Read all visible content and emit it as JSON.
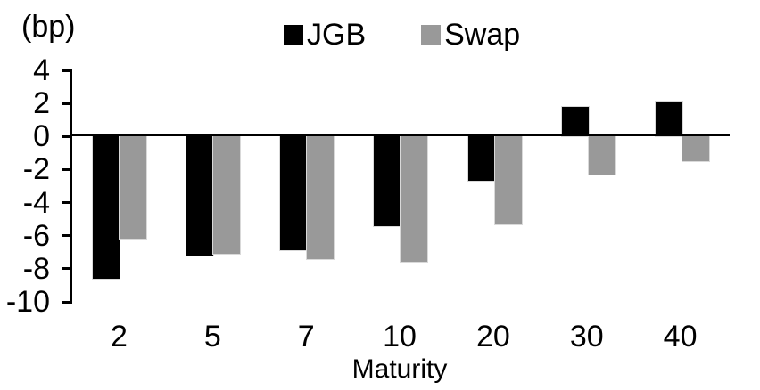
{
  "chart_data": {
    "type": "bar",
    "title": "",
    "unit_label": "(bp)",
    "xlabel": "Maturity",
    "categories": [
      "2",
      "5",
      "7",
      "10",
      "20",
      "30",
      "40"
    ],
    "series": [
      {
        "name": "JGB",
        "color": "#000000",
        "values": [
          -8.6,
          -7.2,
          -6.9,
          -5.4,
          -2.7,
          1.8,
          2.1
        ]
      },
      {
        "name": "Swap",
        "color": "#999999",
        "values": [
          -6.2,
          -7.1,
          -7.4,
          -7.6,
          -5.3,
          -2.3,
          -1.5
        ]
      }
    ],
    "ylim": [
      -10,
      4
    ],
    "yticks": [
      4,
      2,
      0,
      -2,
      -4,
      -6,
      -8,
      -10
    ],
    "grid": false,
    "legend_position": "top-center",
    "axis_color": "#000000",
    "background": "#ffffff"
  }
}
